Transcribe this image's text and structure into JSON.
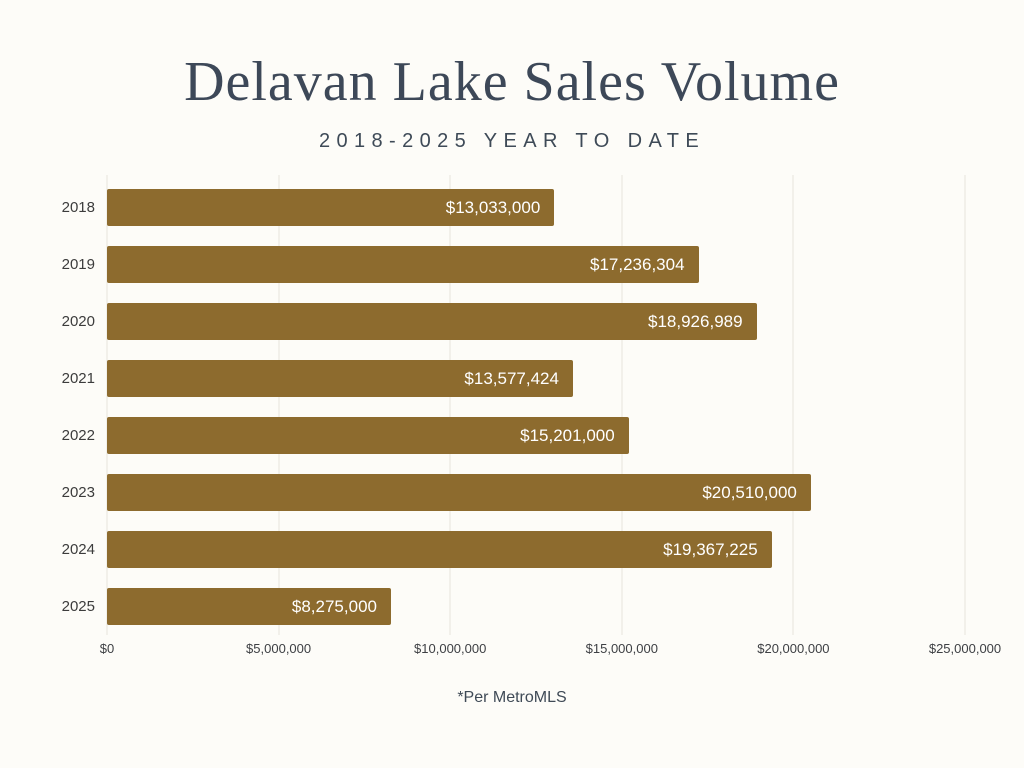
{
  "header": {
    "title": "Delavan Lake Sales Volume",
    "subtitle": "2018-2025 YEAR TO DATE"
  },
  "footer": {
    "note": "*Per MetroMLS"
  },
  "chart_data": {
    "type": "bar",
    "orientation": "horizontal",
    "title": "Delavan Lake Sales Volume",
    "subtitle": "2018-2025 YEAR TO DATE",
    "categories": [
      "2018",
      "2019",
      "2020",
      "2021",
      "2022",
      "2023",
      "2024",
      "2025"
    ],
    "values": [
      13033000,
      17236304,
      18926989,
      13577424,
      15201000,
      20510000,
      19367225,
      8275000
    ],
    "value_labels": [
      "$13,033,000",
      "$17,236,304",
      "$18,926,989",
      "$13,577,424",
      "$15,201,000",
      "$20,510,000",
      "$19,367,225",
      "$8,275,000"
    ],
    "x_ticks": [
      "$0",
      "$5,000,000",
      "$10,000,000",
      "$15,000,000",
      "$20,000,000",
      "$25,000,000"
    ],
    "xlim": [
      0,
      25000000
    ],
    "grid": true,
    "bar_color": "#8d6b2e",
    "background_color": "#fdfcf8",
    "title_color": "#3d4858"
  }
}
